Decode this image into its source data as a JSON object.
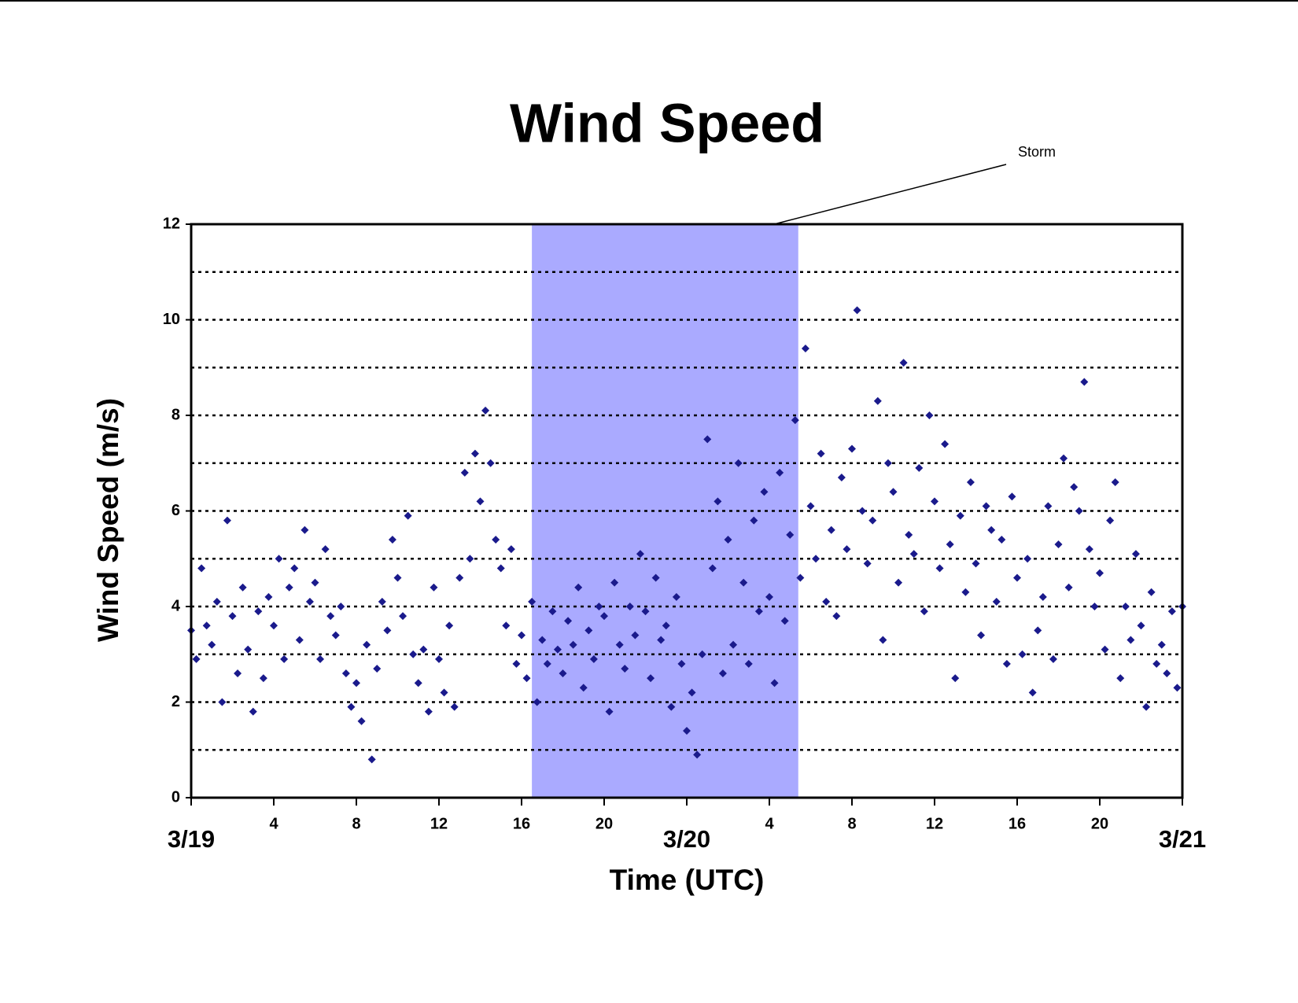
{
  "chart_data": {
    "type": "scatter",
    "title": "Wind Speed",
    "x_label": "Time (UTC)",
    "y_label": "Wind Speed (m/s)",
    "annotation": "Storm",
    "shaded_span": {
      "start": 16.5,
      "end": 29.4,
      "color": "#aaaaff"
    },
    "color": "#1a1a8c",
    "xlim": [
      0,
      48
    ],
    "ylim": [
      0,
      12
    ],
    "xticks": [
      {
        "value": 0,
        "label": "3/19"
      },
      4,
      8,
      12,
      16,
      20,
      {
        "value": 24,
        "label": "3/20"
      },
      {
        "value": 28,
        "label": "4"
      },
      {
        "value": 32,
        "label": "8"
      },
      {
        "value": 36,
        "label": "12"
      },
      {
        "value": 40,
        "label": "16"
      },
      {
        "value": 44,
        "label": "20"
      },
      {
        "value": 48,
        "label": "3/21"
      }
    ],
    "yticks": [
      0,
      2,
      4,
      6,
      8,
      10,
      12
    ],
    "minor_yticks": [
      1,
      3,
      5,
      7,
      9,
      11
    ],
    "grid": true,
    "x": [
      0,
      0.25,
      0.5,
      0.75,
      1,
      1.25,
      1.5,
      1.75,
      2,
      2.25,
      2.5,
      2.75,
      3,
      3.25,
      3.5,
      3.75,
      4,
      4.25,
      4.5,
      4.75,
      5,
      5.25,
      5.5,
      5.75,
      6,
      6.25,
      6.5,
      6.75,
      7,
      7.25,
      7.5,
      7.75,
      8,
      8.25,
      8.5,
      8.75,
      9,
      9.25,
      9.5,
      9.75,
      10,
      10.25,
      10.5,
      10.75,
      11,
      11.25,
      11.5,
      11.75,
      12,
      12.25,
      12.5,
      12.75,
      13,
      13.25,
      13.5,
      13.75,
      14,
      14.25,
      14.5,
      14.75,
      15,
      15.25,
      15.5,
      15.75,
      16,
      16.25,
      16.5,
      16.75,
      17,
      17.25,
      17.5,
      17.75,
      18,
      18.25,
      18.5,
      18.75,
      19,
      19.25,
      19.5,
      19.75,
      20,
      20.25,
      20.5,
      20.75,
      21,
      21.25,
      21.5,
      21.75,
      22,
      22.25,
      22.5,
      22.75,
      23,
      23.25,
      23.5,
      23.75,
      24,
      24.25,
      24.5,
      24.75,
      25,
      25.25,
      25.5,
      25.75,
      26,
      26.25,
      26.5,
      26.75,
      27,
      27.25,
      27.5,
      27.75,
      28,
      28.25,
      28.5,
      28.75,
      29,
      29.25,
      29.5,
      29.75,
      30,
      30.25,
      30.5,
      30.75,
      31,
      31.25,
      31.5,
      31.75,
      32,
      32.25,
      32.5,
      32.75,
      33,
      33.25,
      33.5,
      33.75,
      34,
      34.25,
      34.5,
      34.75,
      35,
      35.25,
      35.5,
      35.75,
      36,
      36.25,
      36.5,
      36.75,
      37,
      37.25,
      37.5,
      37.75,
      38,
      38.25,
      38.5,
      38.75,
      39,
      39.25,
      39.5,
      39.75,
      40,
      40.25,
      40.5,
      40.75,
      41,
      41.25,
      41.5,
      41.75,
      42,
      42.25,
      42.5,
      42.75,
      43,
      43.25,
      43.5,
      43.75,
      44,
      44.25,
      44.5,
      44.75,
      45,
      45.25,
      45.5,
      45.75,
      46,
      46.25,
      46.5,
      46.75,
      47,
      47.25,
      47.5,
      47.75,
      48
    ],
    "values": [
      3.5,
      2.9,
      4.8,
      3.6,
      3.2,
      4.1,
      2.0,
      5.8,
      3.8,
      2.6,
      4.4,
      3.1,
      1.8,
      3.9,
      2.5,
      4.2,
      3.6,
      5.0,
      2.9,
      4.4,
      4.8,
      3.3,
      5.6,
      4.1,
      4.5,
      2.9,
      5.2,
      3.8,
      3.4,
      4.0,
      2.6,
      1.9,
      2.4,
      1.6,
      3.2,
      0.8,
      2.7,
      4.1,
      3.5,
      5.4,
      4.6,
      3.8,
      5.9,
      3.0,
      2.4,
      3.1,
      1.8,
      4.4,
      2.9,
      2.2,
      3.6,
      1.9,
      4.6,
      6.8,
      5.0,
      7.2,
      6.2,
      8.1,
      7.0,
      5.4,
      4.8,
      3.6,
      5.2,
      2.8,
      3.4,
      2.5,
      4.1,
      2.0,
      3.3,
      2.8,
      3.9,
      3.1,
      2.6,
      3.7,
      3.2,
      4.4,
      2.3,
      3.5,
      2.9,
      4.0,
      3.8,
      1.8,
      4.5,
      3.2,
      2.7,
      4.0,
      3.4,
      5.1,
      3.9,
      2.5,
      4.6,
      3.3,
      3.6,
      1.9,
      4.2,
      2.8,
      1.4,
      2.2,
      0.9,
      3.0,
      7.5,
      4.8,
      6.2,
      2.6,
      5.4,
      3.2,
      7.0,
      4.5,
      2.8,
      5.8,
      3.9,
      6.4,
      4.2,
      2.4,
      6.8,
      3.7,
      5.5,
      7.9,
      4.6,
      9.4,
      6.1,
      5.0,
      7.2,
      4.1,
      5.6,
      3.8,
      6.7,
      5.2,
      7.3,
      10.2,
      6.0,
      4.9,
      5.8,
      8.3,
      3.3,
      7.0,
      6.4,
      4.5,
      9.1,
      5.5,
      5.1,
      6.9,
      3.9,
      8.0,
      6.2,
      4.8,
      7.4,
      5.3,
      2.5,
      5.9,
      4.3,
      6.6,
      4.9,
      3.4,
      6.1,
      5.6,
      4.1,
      5.4,
      2.8,
      6.3,
      4.6,
      3.0,
      5.0,
      2.2,
      3.5,
      4.2,
      6.1,
      2.9,
      5.3,
      7.1,
      4.4,
      6.5,
      6.0,
      8.7,
      5.2,
      4.0,
      4.7,
      3.1,
      5.8,
      6.6,
      2.5,
      4.0,
      3.3,
      5.1,
      3.6,
      1.9,
      4.3,
      2.8,
      3.2,
      2.6,
      3.9,
      2.3,
      4.0
    ]
  }
}
